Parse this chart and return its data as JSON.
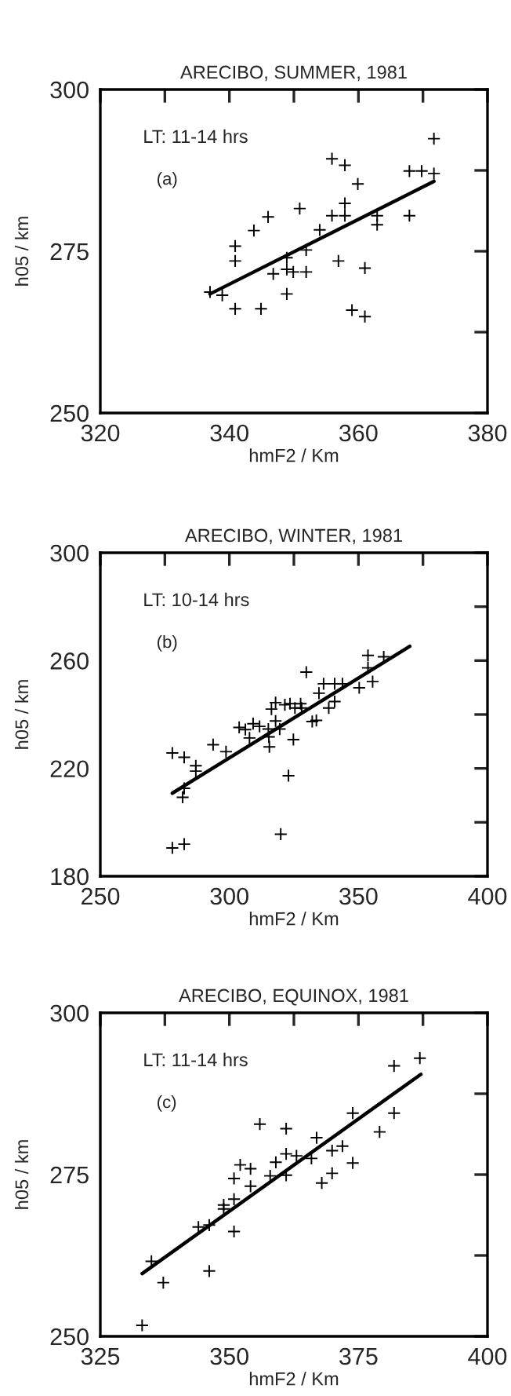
{
  "chart_data": [
    {
      "type": "scatter",
      "title": "ARECIBO, SUMMER, 1981",
      "xlabel": "hmF2 / Km",
      "ylabel": "h05 / km",
      "annotations": [
        "LT: 11-14 hrs",
        "(a)"
      ],
      "grid": false,
      "legend": false,
      "xlim": [
        320,
        380
      ],
      "xticks": [
        320,
        {
          "value": 330,
          "label": null
        },
        340,
        {
          "value": 350,
          "label": null
        },
        360,
        {
          "value": 370,
          "label": null
        },
        380
      ],
      "ylim": [
        250,
        300
      ],
      "yticks": [
        250,
        {
          "value": 262.5,
          "label": null
        },
        275,
        {
          "value": 287.5,
          "label": null
        },
        300
      ],
      "series": [
        {
          "marker": "cross",
          "color": "#000000",
          "x": [
            337.0,
            338.9,
            340.9,
            340.9,
            340.9,
            343.8,
            344.9,
            346.0,
            346.8,
            348.9,
            348.9,
            348.9,
            349.9,
            350.9,
            351.9,
            351.9,
            354.0,
            355.9,
            355.9,
            356.9,
            357.9,
            357.9,
            357.9,
            359.0,
            359.9,
            361.0,
            361.0,
            362.9,
            362.9,
            367.9,
            367.9,
            369.8,
            371.7,
            371.7
          ],
          "values": [
            268.7,
            268.2,
            275.8,
            273.5,
            266.1,
            278.2,
            266.1,
            280.3,
            271.5,
            274.0,
            272.2,
            268.4,
            271.8,
            281.6,
            275.2,
            271.8,
            278.3,
            289.3,
            280.5,
            273.5,
            288.3,
            282.4,
            280.5,
            265.9,
            285.4,
            272.4,
            264.9,
            280.5,
            279.1,
            280.5,
            287.4,
            287.4,
            292.4,
            287.0
          ]
        },
        {
          "type": "line",
          "color": "#000000",
          "x": [
            337.0,
            371.7
          ],
          "values": [
            268.4,
            285.8
          ]
        }
      ]
    },
    {
      "type": "scatter",
      "title": "ARECIBO, WINTER, 1981",
      "xlabel": "hmF2 / Km",
      "ylabel": "h05 / km",
      "annotations": [
        "LT: 10-14 hrs",
        "(b)"
      ],
      "grid": false,
      "legend": false,
      "xlim": [
        250,
        400
      ],
      "xticks": [
        250,
        {
          "value": 275,
          "label": null
        },
        300,
        {
          "value": 325,
          "label": null
        },
        350,
        {
          "value": 375,
          "label": null
        },
        400
      ],
      "ylim": [
        180,
        300
      ],
      "yticks": [
        180,
        {
          "value": 200,
          "label": null
        },
        220,
        {
          "value": 240,
          "label": null
        },
        260,
        {
          "value": 280,
          "label": null
        },
        300
      ],
      "series": [
        {
          "marker": "cross",
          "color": "#000000",
          "x": [
            277.9,
            277.9,
            282.5,
            282.5,
            281.9,
            282.5,
            287.0,
            287.0,
            293.7,
            298.7,
            303.8,
            306.2,
            307.8,
            309.2,
            311.7,
            315.1,
            315.3,
            315.5,
            316.3,
            317.9,
            317.9,
            319.5,
            319.9,
            321.5,
            322.9,
            323.5,
            324.8,
            325.4,
            327.6,
            328.0,
            329.8,
            332.1,
            333.7,
            334.7,
            336.5,
            338.5,
            340.8,
            340.8,
            343.8,
            350.3,
            353.7,
            353.7,
            355.5,
            359.8
          ],
          "values": [
            225.7,
            190.5,
            224.1,
            191.9,
            209.3,
            212.6,
            221.0,
            219.0,
            228.8,
            226.2,
            235.2,
            234.4,
            231.3,
            236.6,
            235.6,
            234.6,
            231.7,
            228.0,
            242.0,
            244.4,
            237.6,
            234.6,
            195.6,
            243.6,
            217.3,
            244.0,
            230.7,
            242.4,
            244.0,
            242.4,
            255.7,
            237.4,
            237.8,
            247.9,
            251.4,
            242.4,
            251.4,
            244.8,
            251.4,
            249.9,
            261.9,
            257.3,
            252.2,
            261.4
          ]
        },
        {
          "type": "line",
          "color": "#000000",
          "x": [
            277.9,
            369.9
          ],
          "values": [
            210.8,
            265.3
          ]
        }
      ]
    },
    {
      "type": "scatter",
      "title": "ARECIBO, EQUINOX, 1981",
      "xlabel": "hmF2 / Km",
      "ylabel": "h05 / km",
      "annotations": [
        "LT: 11-14 hrs",
        "(c)"
      ],
      "grid": false,
      "legend": false,
      "xlim": [
        325,
        400
      ],
      "xticks": [
        325,
        {
          "value": 337.5,
          "label": null
        },
        350,
        {
          "value": 362.5,
          "label": null
        },
        375,
        {
          "value": 387.5,
          "label": null
        },
        400
      ],
      "ylim": [
        250,
        300
      ],
      "yticks": [
        250,
        {
          "value": 262.5,
          "label": null
        },
        275,
        {
          "value": 287.5,
          "label": null
        },
        300
      ],
      "series": [
        {
          "marker": "cross",
          "color": "#000000",
          "x": [
            333.1,
            334.9,
            337.2,
            344.0,
            346.1,
            346.1,
            348.9,
            348.9,
            350.9,
            350.9,
            350.9,
            352.1,
            354.1,
            354.1,
            355.9,
            357.9,
            359.0,
            361.0,
            361.0,
            361.0,
            363.0,
            365.9,
            366.9,
            367.9,
            369.9,
            369.9,
            371.9,
            373.9,
            373.9,
            379.1,
            381.9,
            381.9,
            386.9
          ],
          "values": [
            251.7,
            261.6,
            258.3,
            266.9,
            267.2,
            260.1,
            269.7,
            270.3,
            271.2,
            274.4,
            266.2,
            276.5,
            273.2,
            275.9,
            282.8,
            274.8,
            276.9,
            282.1,
            278.2,
            274.9,
            277.9,
            277.5,
            280.7,
            273.7,
            278.7,
            275.2,
            279.4,
            284.5,
            276.8,
            281.6,
            284.5,
            291.8,
            293.0
          ]
        },
        {
          "type": "line",
          "color": "#000000",
          "x": [
            333.1,
            387.1
          ],
          "values": [
            259.7,
            290.5
          ]
        }
      ]
    }
  ]
}
